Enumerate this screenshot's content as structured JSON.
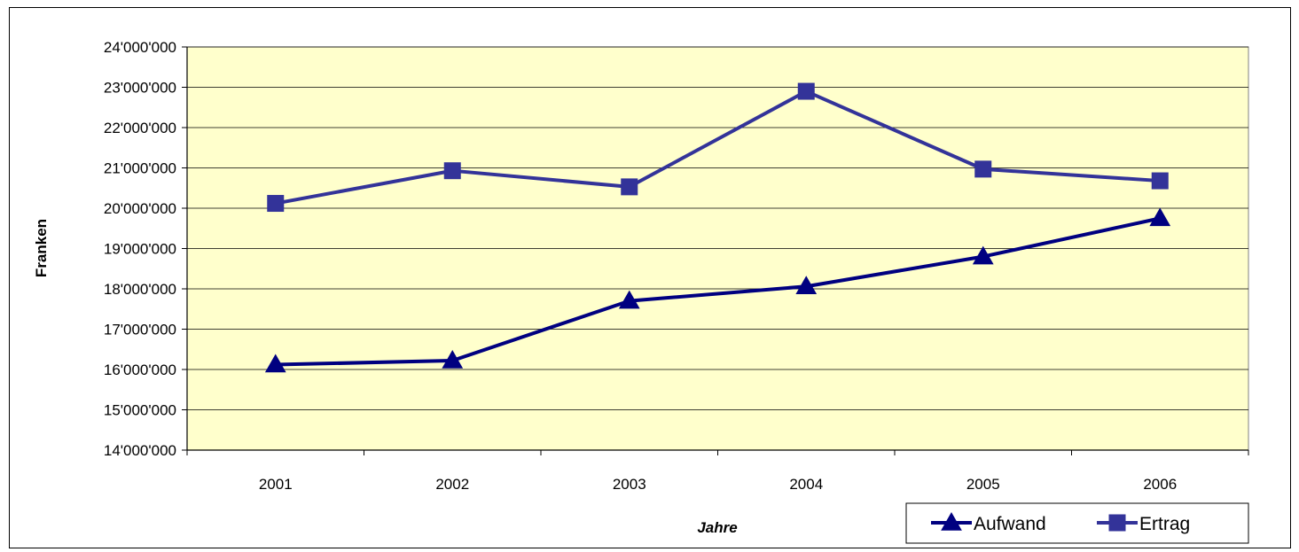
{
  "chart_data": {
    "type": "line",
    "title": "",
    "xlabel": "Jahre",
    "ylabel": "Franken",
    "categories": [
      "2001",
      "2002",
      "2003",
      "2004",
      "2005",
      "2006"
    ],
    "ylim": [
      14000000,
      24000000
    ],
    "yticks": [
      "14'000'000",
      "15'000'000",
      "16'000'000",
      "17'000'000",
      "18'000'000",
      "19'000'000",
      "20'000'000",
      "21'000'000",
      "22'000'000",
      "23'000'000",
      "24'000'000"
    ],
    "grid": true,
    "plot_background": "#FFFFCC",
    "legend_position": "bottom-right",
    "series": [
      {
        "name": "Aufwand",
        "marker": "triangle",
        "color": "#000080",
        "values": [
          16120000,
          16220000,
          17700000,
          18060000,
          18800000,
          19750000
        ]
      },
      {
        "name": "Ertrag",
        "marker": "square",
        "color": "#333399",
        "values": [
          20120000,
          20930000,
          20530000,
          22900000,
          20970000,
          20680000
        ]
      }
    ]
  }
}
